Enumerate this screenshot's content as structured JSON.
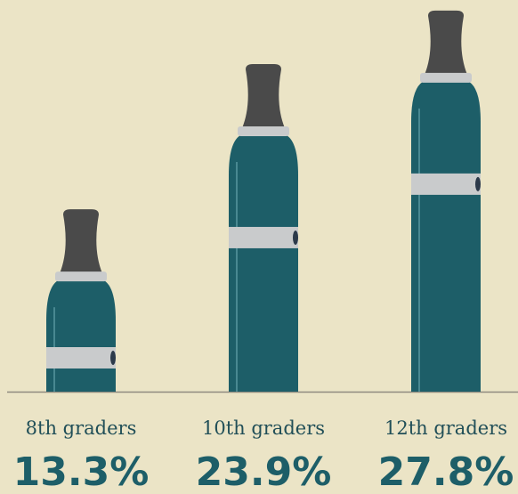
{
  "chart_data": {
    "type": "bar",
    "categories": [
      "8th graders",
      "10th graders",
      "12th graders"
    ],
    "values": [
      13.3,
      23.9,
      27.8
    ],
    "value_labels": [
      "13.3%",
      "23.9%",
      "27.8%"
    ],
    "color": "#1d5e68"
  }
}
